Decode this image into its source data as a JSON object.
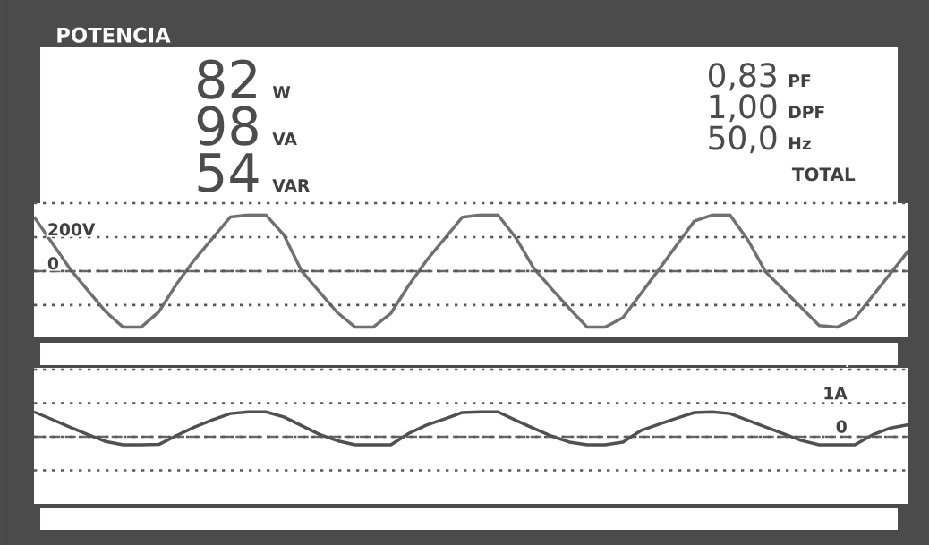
{
  "chart_data": [
    {
      "type": "other",
      "title": "POTENCIA",
      "annotations": [
        "82",
        "W",
        "98",
        "VA",
        "54",
        "VAR",
        "0,83",
        "PF",
        "1,00",
        "DPF",
        "50,0",
        "Hz",
        "TOTAL"
      ]
    },
    {
      "type": "line",
      "categories": [
        null,
        null,
        null,
        null,
        null,
        null,
        null,
        null,
        null,
        null,
        null,
        null,
        null,
        null,
        null,
        null,
        null,
        null,
        null,
        null,
        null,
        null,
        null,
        null,
        null,
        null,
        null,
        null,
        null,
        null,
        null,
        null,
        null,
        null,
        null,
        null,
        null,
        null,
        null,
        null,
        null,
        null,
        null,
        null,
        null,
        null,
        null,
        null,
        null,
        null
      ],
      "series": [
        {
          "color": "#707070",
          "values": [
            320,
            168,
            15,
            -112,
            -237,
            -330,
            -330,
            -239,
            -74,
            68,
            193,
            318,
            330,
            330,
            213,
            0,
            -122,
            -244,
            -330,
            -330,
            -248,
            -83,
            63,
            190,
            317,
            330,
            330,
            196,
            18,
            -104,
            -220,
            -330,
            -330,
            -274,
            -133,
            7,
            151,
            294,
            330,
            330,
            184,
            -5,
            -110,
            -215,
            -320,
            -330,
            -277,
            -145,
            -13,
            120
          ]
        }
      ],
      "ylim": [
        -390,
        400
      ],
      "yticks": [
        {
          "value": 400,
          "label": null
        },
        {
          "value": 200,
          "label": "200V"
        },
        0,
        {
          "value": -200,
          "label": null
        }
      ],
      "grid": "y",
      "tick_labels": "y",
      "ref_lines": [
        {
          "axis": "y",
          "value": 0,
          "line_style": "dashed"
        }
      ]
    },
    {
      "type": "line",
      "categories": [
        null,
        null,
        null,
        null,
        null,
        null,
        null,
        null,
        null,
        null,
        null,
        null,
        null,
        null,
        null,
        null,
        null,
        null,
        null,
        null,
        null,
        null,
        null,
        null,
        null,
        null,
        null,
        null,
        null,
        null,
        null,
        null,
        null,
        null,
        null,
        null,
        null,
        null,
        null,
        null,
        null,
        null,
        null,
        null,
        null,
        null,
        null,
        null,
        null,
        null
      ],
      "series": [
        {
          "color": "#505050",
          "values": [
            0.74,
            0.52,
            0.29,
            0.07,
            -0.14,
            -0.24,
            -0.24,
            -0.23,
            0.04,
            0.29,
            0.5,
            0.69,
            0.74,
            0.74,
            0.59,
            0.33,
            0.07,
            -0.12,
            -0.24,
            -0.24,
            -0.24,
            0.1,
            0.35,
            0.53,
            0.72,
            0.74,
            0.74,
            0.49,
            0.25,
            0.02,
            -0.16,
            -0.24,
            -0.24,
            -0.16,
            0.18,
            0.37,
            0.55,
            0.72,
            0.74,
            0.69,
            0.49,
            0.29,
            0.09,
            -0.11,
            -0.24,
            -0.24,
            -0.24,
            0.06,
            0.26,
            0.36
          ]
        }
      ],
      "ylim": [
        -2,
        2
      ],
      "yticks": [
        {
          "value": 2,
          "label": null
        },
        {
          "value": 1,
          "label": "1A"
        },
        0,
        {
          "value": -1,
          "label": null
        }
      ],
      "grid": "y",
      "tick_labels": "y",
      "ref_lines": [
        {
          "axis": "y",
          "value": 0,
          "line_style": "dashed"
        }
      ]
    }
  ]
}
